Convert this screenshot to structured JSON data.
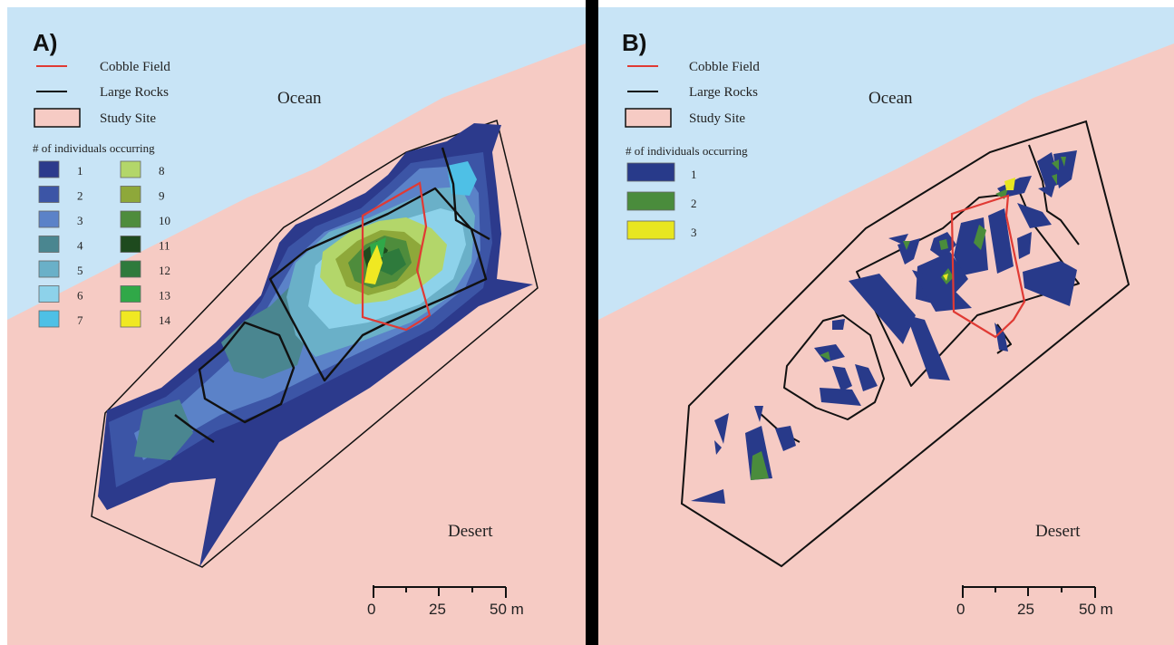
{
  "colors": {
    "ocean": "#c8e4f6",
    "desert": "#f6cbc4",
    "cobble_field": "#e03a34",
    "large_rocks": "#111111",
    "study_site_fill": "#f6cbc4"
  },
  "common_legend": {
    "cobble_field": "Cobble Field",
    "large_rocks": "Large Rocks",
    "study_site": "Study Site",
    "count_title": "# of individuals occurring"
  },
  "panel_a": {
    "label": "A)",
    "ocean_label": "Ocean",
    "desert_label": "Desert",
    "scale": {
      "ticks": [
        "0",
        "25",
        "50 m"
      ]
    },
    "classes": [
      {
        "label": "1",
        "color": "#2c3a8c"
      },
      {
        "label": "2",
        "color": "#3c55a6"
      },
      {
        "label": "3",
        "color": "#5b82c8"
      },
      {
        "label": "4",
        "color": "#4a8690"
      },
      {
        "label": "5",
        "color": "#6ab0c8"
      },
      {
        "label": "6",
        "color": "#8dd2ea"
      },
      {
        "label": "7",
        "color": "#4ec0e6"
      },
      {
        "label": "8",
        "color": "#b3d66a"
      },
      {
        "label": "9",
        "color": "#8ea83a"
      },
      {
        "label": "10",
        "color": "#4e8c3c"
      },
      {
        "label": "11",
        "color": "#1e4a1e"
      },
      {
        "label": "12",
        "color": "#2e7a3c"
      },
      {
        "label": "13",
        "color": "#30a848"
      },
      {
        "label": "14",
        "color": "#f0e822"
      }
    ]
  },
  "panel_b": {
    "label": "B)",
    "ocean_label": "Ocean",
    "desert_label": "Desert",
    "scale": {
      "ticks": [
        "0",
        "25",
        "50 m"
      ]
    },
    "classes": [
      {
        "label": "1",
        "color": "#283a8a"
      },
      {
        "label": "2",
        "color": "#4a8c3c"
      },
      {
        "label": "3",
        "color": "#e8e620"
      }
    ]
  }
}
